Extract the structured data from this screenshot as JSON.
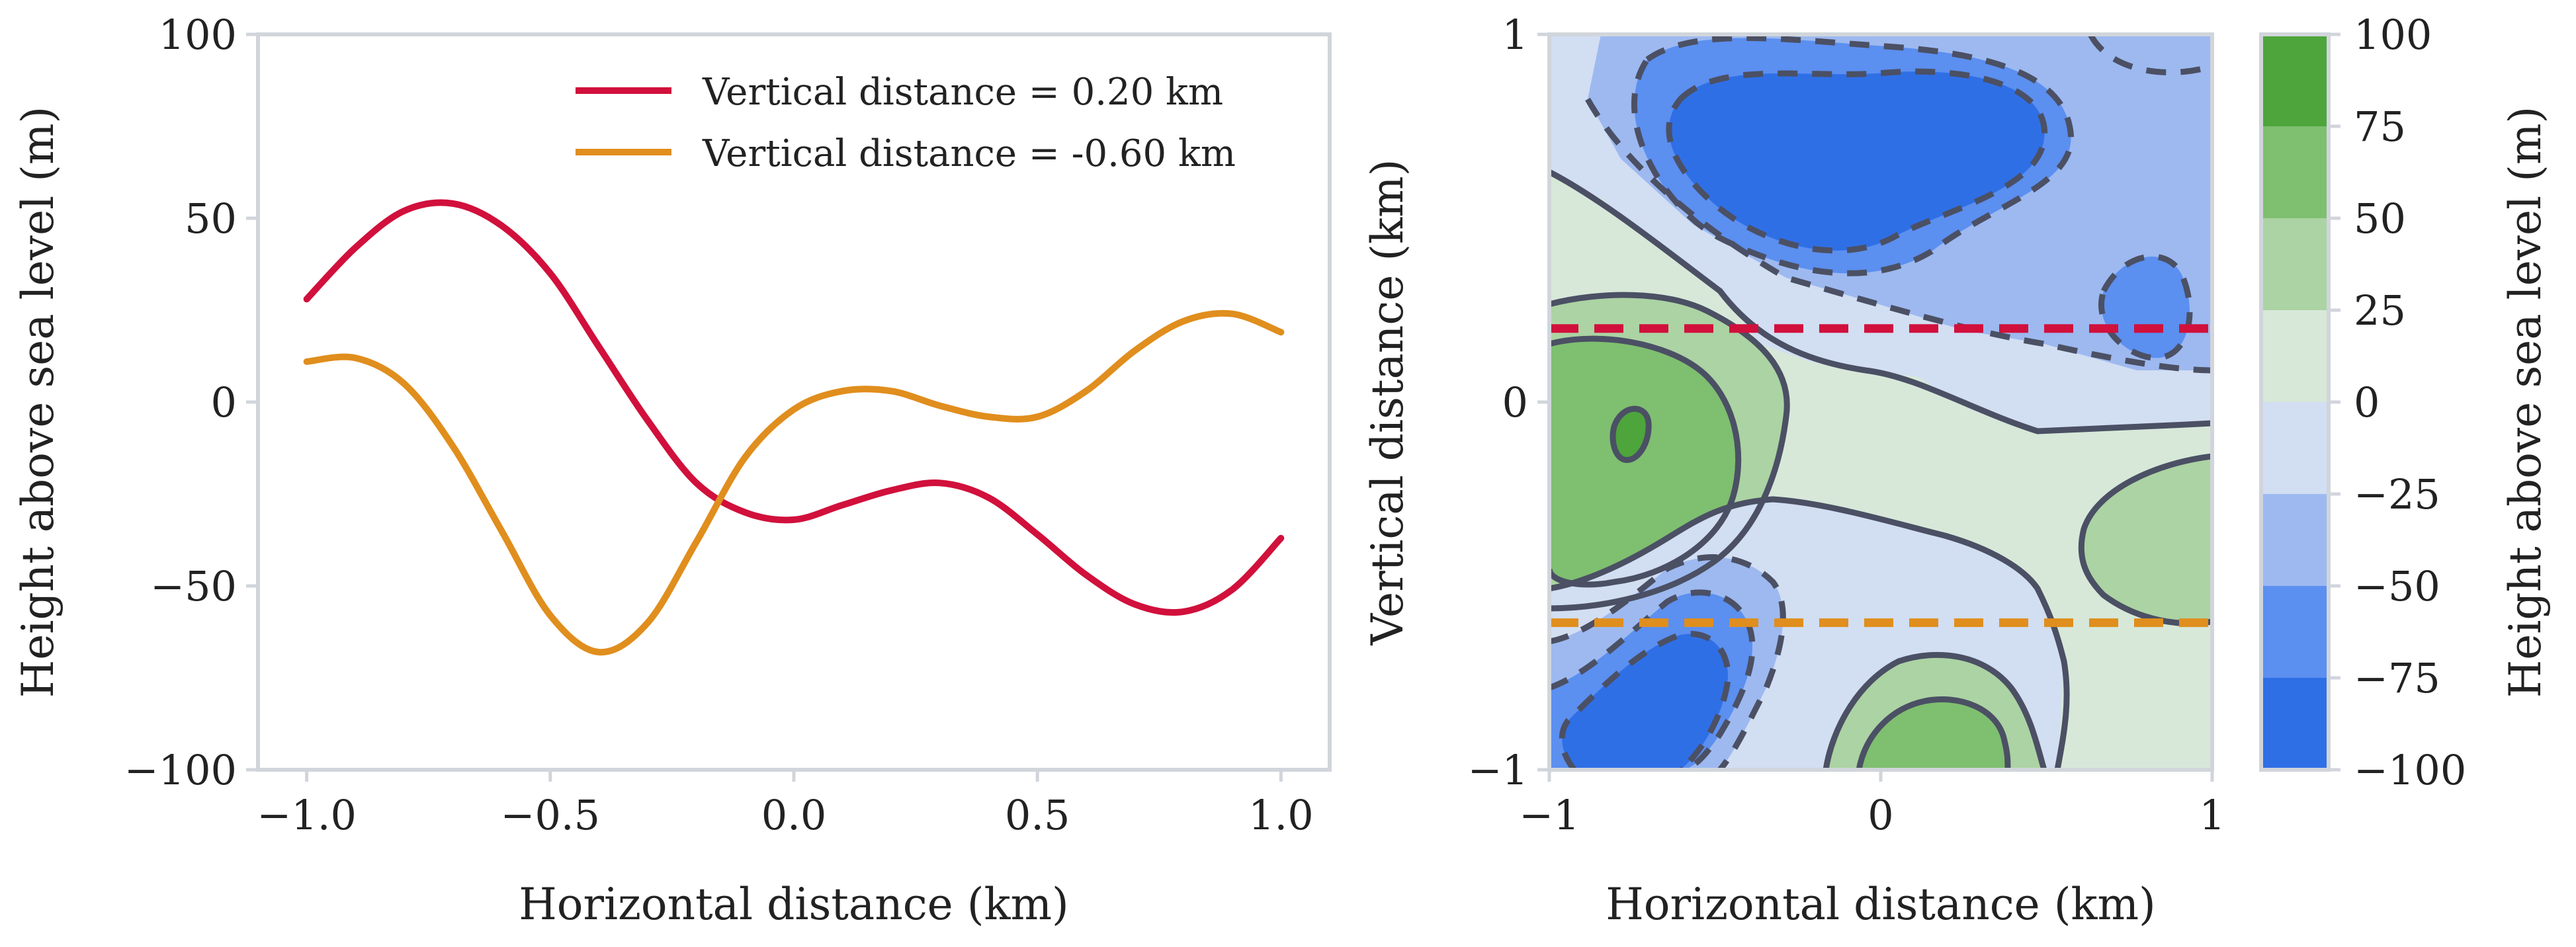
{
  "figure": {
    "colors": {
      "axes_spine": "#d1d5db",
      "contour_line": "#4b5064",
      "red": "#d1103c",
      "orange": "#e08e1d",
      "levels_fill": [
        "#2f6fe6",
        "#5b8ff0",
        "#9db9f0",
        "#d2def2",
        "#d7e8d9",
        "#acd3a3",
        "#7fbf70",
        "#4ea53c"
      ]
    }
  },
  "chart_data": [
    {
      "type": "line",
      "xlabel": "Horizontal distance (km)",
      "ylabel": "Height above sea level (m)",
      "xlim": [
        -1.1,
        1.1
      ],
      "ylim": [
        -100,
        100
      ],
      "xticks": [
        -1.0,
        -0.5,
        0.0,
        0.5,
        1.0
      ],
      "xtick_labels": [
        "−1.0",
        "−0.5",
        "0.0",
        "0.5",
        "1.0"
      ],
      "yticks": [
        100,
        50,
        0,
        -50,
        -100
      ],
      "ytick_labels": [
        "100",
        "50",
        "0",
        "−50",
        "−100"
      ],
      "grid": false,
      "legend_position": "top-right",
      "x": [
        -1.0,
        -0.9,
        -0.8,
        -0.7,
        -0.6,
        -0.5,
        -0.4,
        -0.3,
        -0.2,
        -0.1,
        0.0,
        0.1,
        0.2,
        0.3,
        0.4,
        0.5,
        0.6,
        0.7,
        0.8,
        0.9,
        1.0
      ],
      "series": [
        {
          "name": "Vertical distance = 0.20 km",
          "color": "#d1103c",
          "values": [
            28,
            42,
            52,
            54,
            48,
            35,
            15,
            -5,
            -22,
            -30,
            -32,
            -28,
            -24,
            -22,
            -26,
            -36,
            -47,
            -55,
            -57,
            -51,
            -37
          ]
        },
        {
          "name": "Vertical distance = -0.60 km",
          "color": "#e08e1d",
          "values": [
            11,
            12,
            5,
            -12,
            -35,
            -58,
            -68,
            -60,
            -38,
            -15,
            -2,
            3,
            3,
            -1,
            -4,
            -4,
            3,
            14,
            22,
            24,
            19
          ]
        }
      ]
    },
    {
      "type": "contour",
      "xlabel": "Horizontal distance (km)",
      "ylabel": "Vertical distance (km)",
      "xlim": [
        -1,
        1
      ],
      "ylim": [
        -1,
        1
      ],
      "xticks": [
        -1,
        0,
        1
      ],
      "xtick_labels": [
        "−1",
        "0",
        "1"
      ],
      "yticks": [
        1,
        0,
        -1
      ],
      "ytick_labels": [
        "1",
        "0",
        "−1"
      ],
      "levels": [
        -100,
        -75,
        -50,
        -25,
        0,
        25,
        50,
        75,
        100
      ],
      "reference_lines": [
        {
          "y": 0.2,
          "color": "#d1103c",
          "style": "dashed"
        },
        {
          "y": -0.6,
          "color": "#e08e1d",
          "style": "dashed"
        }
      ],
      "colorbar": {
        "label": "Height above sea level (m)",
        "ticks": [
          100,
          75,
          50,
          25,
          0,
          -25,
          -50,
          -75,
          -100
        ],
        "tick_labels": [
          "100",
          "75",
          "50",
          "25",
          "0",
          "−25",
          "−50",
          "−75",
          "−100"
        ]
      }
    }
  ]
}
